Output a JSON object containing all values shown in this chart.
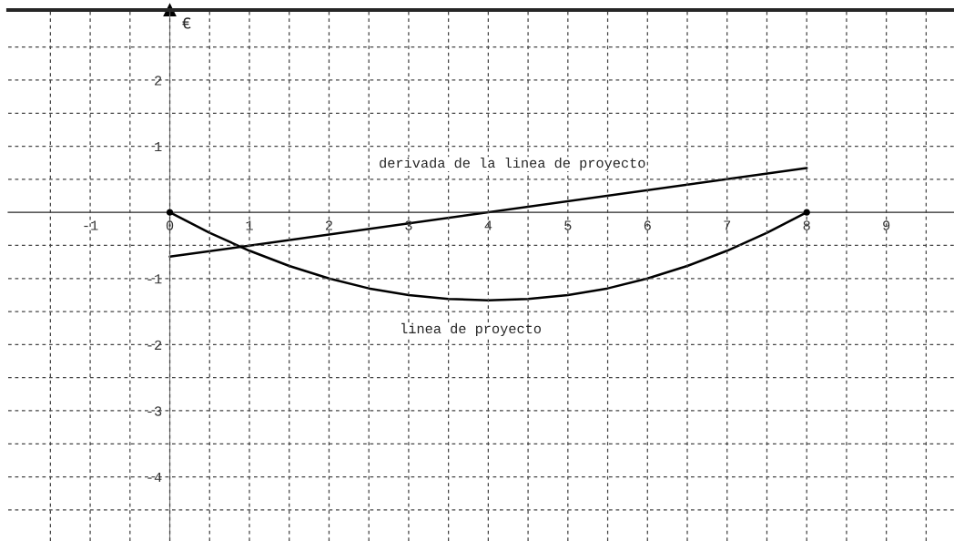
{
  "chart_data": {
    "type": "line",
    "ylabel": "€",
    "xlim": [
      -2.03,
      9.85
    ],
    "ylim": [
      -4.97,
      3.06
    ],
    "xticks": [
      {
        "value": -1.5,
        "label": null
      },
      -1,
      {
        "value": -0.5,
        "label": null
      },
      0,
      {
        "value": 0.5,
        "label": null
      },
      1,
      {
        "value": 1.5,
        "label": null
      },
      2,
      {
        "value": 2.5,
        "label": null
      },
      3,
      {
        "value": 3.5,
        "label": null
      },
      4,
      {
        "value": 4.5,
        "label": null
      },
      5,
      {
        "value": 5.5,
        "label": null
      },
      6,
      {
        "value": 6.5,
        "label": null
      },
      7,
      {
        "value": 7.5,
        "label": null
      },
      8,
      {
        "value": 8.5,
        "label": null
      },
      9,
      {
        "value": 9.5,
        "label": null
      }
    ],
    "yticks": [
      {
        "value": -4.5,
        "label": null
      },
      -4,
      {
        "value": -3.5,
        "label": null
      },
      -3,
      {
        "value": -2.5,
        "label": null
      },
      -2,
      {
        "value": -1.5,
        "label": null
      },
      -1,
      {
        "value": -0.5,
        "label": null
      },
      {
        "value": 0.5,
        "label": null
      },
      1,
      {
        "value": 1.5,
        "label": null
      },
      2,
      {
        "value": 2.5,
        "label": null
      }
    ],
    "grid": true,
    "line_style": "solid",
    "series": [
      {
        "color": "#000000",
        "x": [
          0,
          0.5,
          1,
          1.5,
          2,
          2.5,
          3,
          3.5,
          4,
          4.5,
          5,
          5.5,
          6,
          6.5,
          7,
          7.5,
          8
        ],
        "values": [
          0,
          -0.31,
          -0.58,
          -0.81,
          -1,
          -1.15,
          -1.25,
          -1.31,
          -1.33,
          -1.31,
          -1.25,
          -1.15,
          -1,
          -0.81,
          -0.58,
          -0.31,
          0
        ]
      },
      {
        "color": "#000000",
        "x": [
          0,
          8
        ],
        "values": [
          -0.67,
          0.67
        ]
      },
      {
        "type": "scatter",
        "color": "#000000",
        "x": [
          0,
          8
        ],
        "values": [
          0,
          0
        ],
        "marker": "circle"
      }
    ],
    "annotations": [
      "derivada de la linea de proyecto",
      "linea de proyecto"
    ]
  }
}
